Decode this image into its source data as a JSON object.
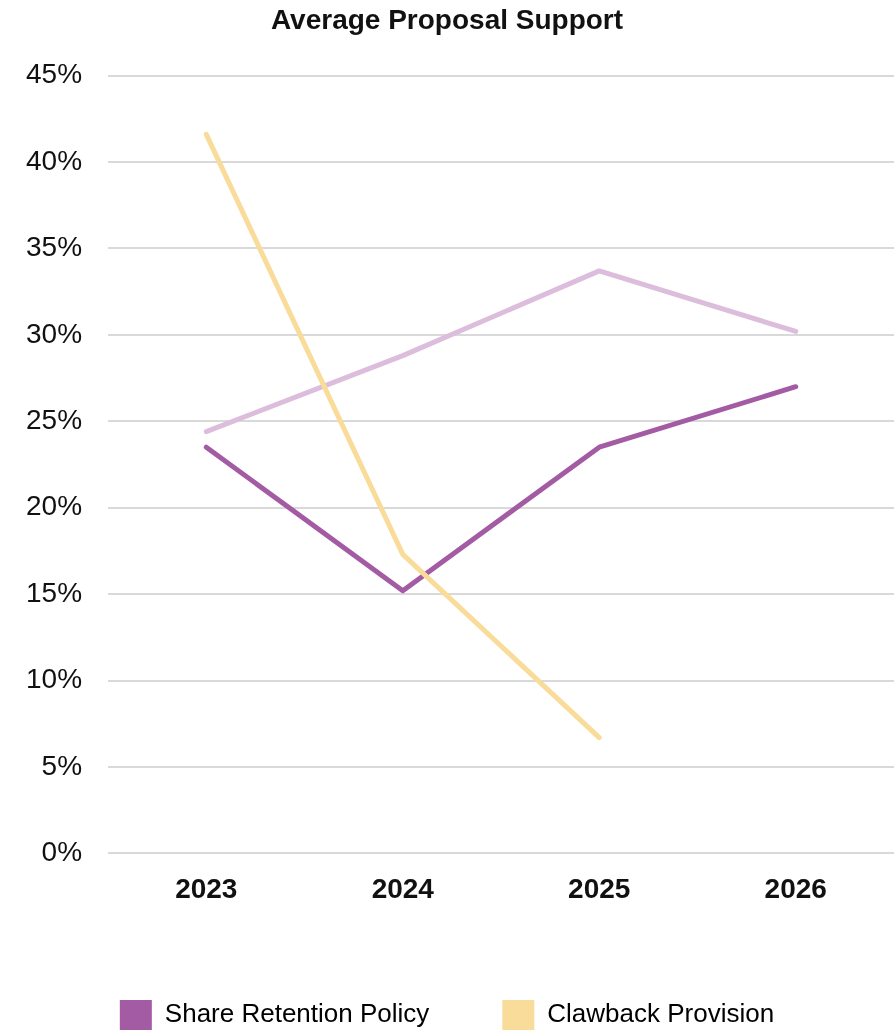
{
  "chart_data": {
    "type": "line",
    "title": "Average Proposal Support",
    "categories": [
      "2023",
      "2024",
      "2025",
      "2026"
    ],
    "series": [
      {
        "name": "Share Retention Policy",
        "color": "#a35ba3",
        "values": [
          23.5,
          15.2,
          23.5,
          27.0
        ]
      },
      {
        "color": "#dcbddc",
        "values": [
          24.4,
          28.8,
          33.7,
          30.2
        ]
      },
      {
        "name": "Clawback Provision",
        "color": "#f9db9a",
        "values": [
          41.6,
          17.3,
          6.7,
          null
        ]
      }
    ],
    "ylim": [
      0,
      45
    ],
    "yticks": [
      {
        "value": 0,
        "label": "0%"
      },
      {
        "value": 5,
        "label": "5%"
      },
      {
        "value": 10,
        "label": "10%"
      },
      {
        "value": 15,
        "label": "15%"
      },
      {
        "value": 20,
        "label": "20%"
      },
      {
        "value": 25,
        "label": "25%"
      },
      {
        "value": 30,
        "label": "30%"
      },
      {
        "value": 35,
        "label": "35%"
      },
      {
        "value": 40,
        "label": "40%"
      },
      {
        "value": 45,
        "label": "45%"
      }
    ],
    "grid": "y",
    "legend": "bottom"
  }
}
